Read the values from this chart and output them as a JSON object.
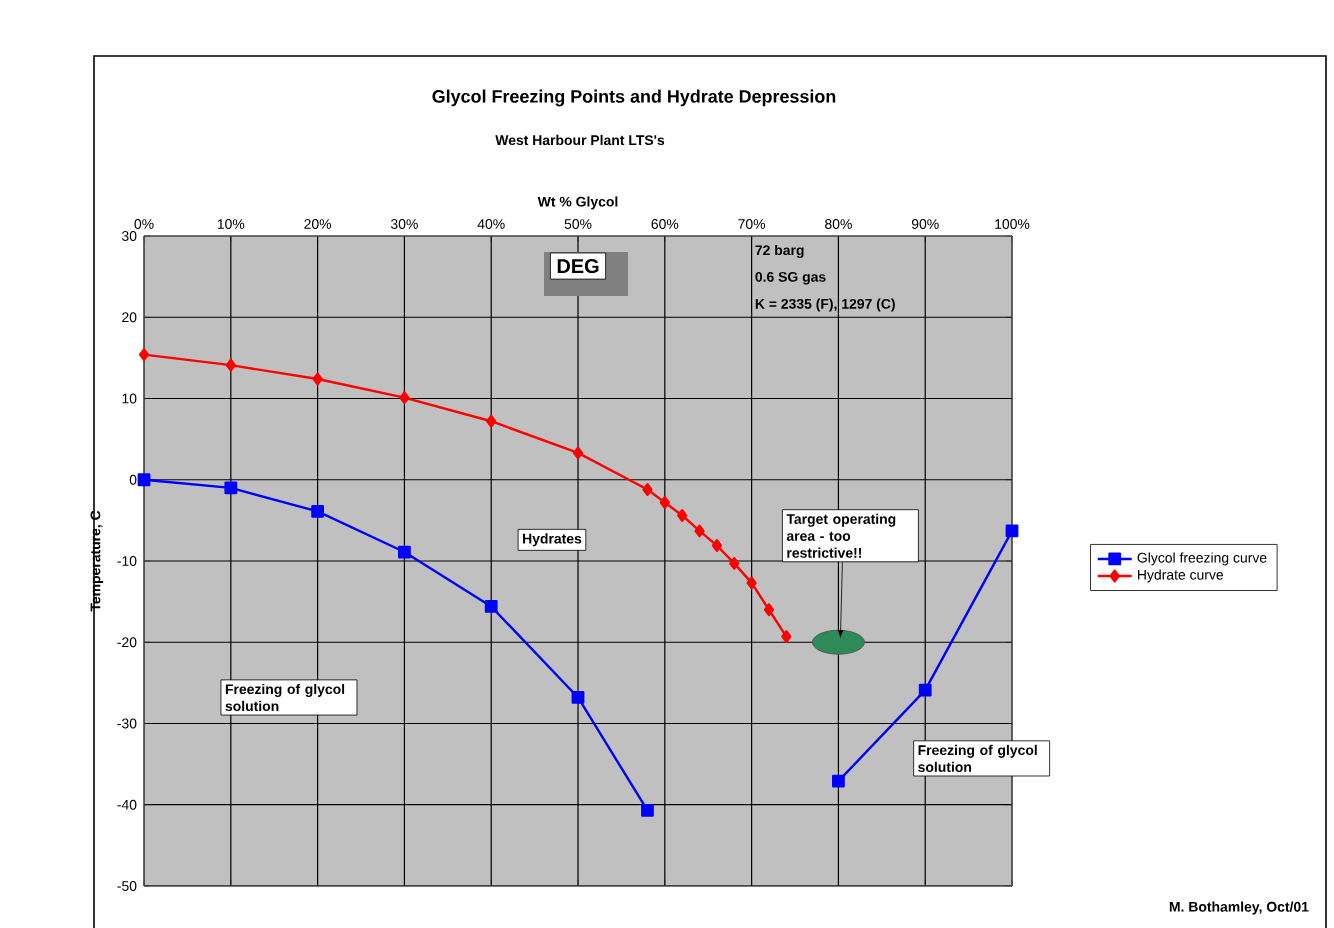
{
  "chart_data": {
    "type": "line",
    "title": "Glycol Freezing Points and Hydrate Depression",
    "subtitle": "West Harbour Plant LTS's",
    "xlabel": "Wt % Glycol",
    "ylabel": "Temperature, C",
    "xlim": [
      0,
      100
    ],
    "ylim": [
      -50,
      30
    ],
    "xticks": [
      {
        "value": 0,
        "label": "0%"
      },
      {
        "value": 10,
        "label": "10%"
      },
      {
        "value": 20,
        "label": "20%"
      },
      {
        "value": 30,
        "label": "30%"
      },
      {
        "value": 40,
        "label": "40%"
      },
      {
        "value": 50,
        "label": "50%"
      },
      {
        "value": 60,
        "label": "60%"
      },
      {
        "value": 70,
        "label": "70%"
      },
      {
        "value": 80,
        "label": "80%"
      },
      {
        "value": 90,
        "label": "90%"
      },
      {
        "value": 100,
        "label": "100%"
      }
    ],
    "yticks": [
      -50,
      -40,
      -30,
      -20,
      -10,
      0,
      10,
      20,
      30
    ],
    "series": [
      {
        "name": "Glycol freezing curve",
        "color": "#0000ff",
        "marker": "square",
        "x": [
          0,
          10,
          20,
          30,
          40,
          50,
          58,
          70,
          80,
          90,
          100
        ],
        "values": [
          0,
          -1,
          -3.9,
          -8.9,
          -15.6,
          -26.8,
          -40.7,
          null,
          -37.1,
          -25.9,
          -6.3
        ]
      },
      {
        "name": "Hydrate curve",
        "color": "#ff0000",
        "marker": "diamond",
        "x": [
          0,
          10,
          20,
          30,
          40,
          50,
          58,
          60,
          62,
          64,
          66,
          68,
          70,
          72,
          74
        ],
        "values": [
          15.4,
          14.1,
          12.4,
          10.1,
          7.2,
          3.3,
          -1.2,
          -2.8,
          -4.4,
          -6.3,
          -8.1,
          -10.3,
          -12.7,
          -16,
          -19.3
        ]
      }
    ],
    "annotations": [
      "DEG",
      "72 barg",
      "0.6 SG gas",
      "K = 2335 (F), 1297 (C)",
      "Hydrates",
      "Freezing of glycol solution",
      "Freezing of glycol solution",
      {
        "text": "Target operating area - too restrictive!!",
        "x": 80,
        "y": -20
      },
      "M. Bothamley, Oct/01"
    ],
    "grid": true,
    "legend": "right",
    "line_style": "solid"
  }
}
